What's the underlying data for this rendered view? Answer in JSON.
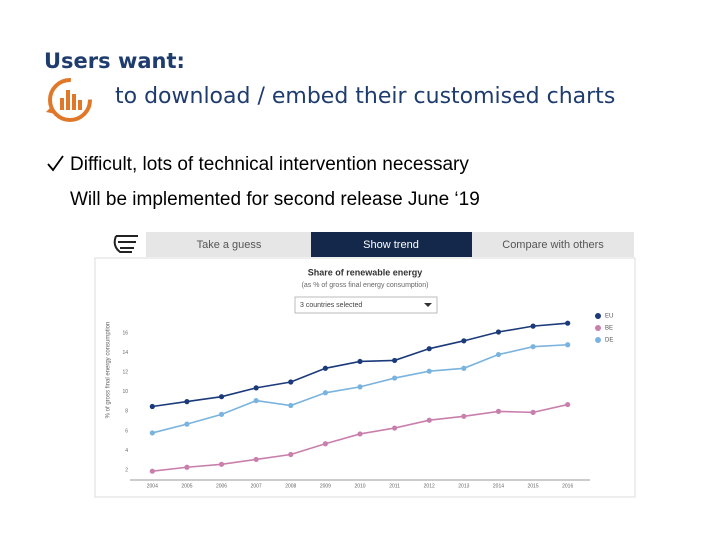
{
  "header": {
    "title": "Users want:",
    "subtitle": "to download / embed their customised charts"
  },
  "bullets": [
    "Difficult, lots of technical intervention necessary",
    "Will be implemented for second release June ‘19"
  ],
  "tabs": [
    "Take a guess",
    "Show trend",
    "Compare with others"
  ],
  "dropdown": "3 countries selected",
  "chart_data": {
    "type": "line",
    "title": "Share of renewable energy",
    "subtitle": "(as % of gross final energy consumption)",
    "y_label": "% of gross final energy consumption",
    "categories": [
      "2004",
      "2005",
      "2006",
      "2007",
      "2008",
      "2009",
      "2010",
      "2011",
      "2012",
      "2013",
      "2014",
      "2015",
      "2016"
    ],
    "series": [
      {
        "name": "EU",
        "color": "#1b3a7a",
        "values": [
          8.5,
          9.0,
          9.5,
          10.4,
          11.0,
          12.4,
          13.1,
          13.2,
          14.4,
          15.2,
          16.1,
          16.7,
          17.0
        ]
      },
      {
        "name": "BE",
        "color": "#c97fab",
        "values": [
          1.9,
          2.3,
          2.6,
          3.1,
          3.6,
          4.7,
          5.7,
          6.3,
          7.1,
          7.5,
          8.0,
          7.9,
          8.7
        ]
      },
      {
        "name": "DE",
        "color": "#7ab3de",
        "values": [
          5.8,
          6.7,
          7.7,
          9.1,
          8.6,
          9.9,
          10.5,
          11.4,
          12.1,
          12.4,
          13.8,
          14.6,
          14.8
        ]
      }
    ],
    "ylim": [
      1,
      18
    ],
    "yticks": [
      2,
      4,
      6,
      8,
      10,
      12,
      14,
      16
    ],
    "grid": false,
    "legend": "right"
  }
}
